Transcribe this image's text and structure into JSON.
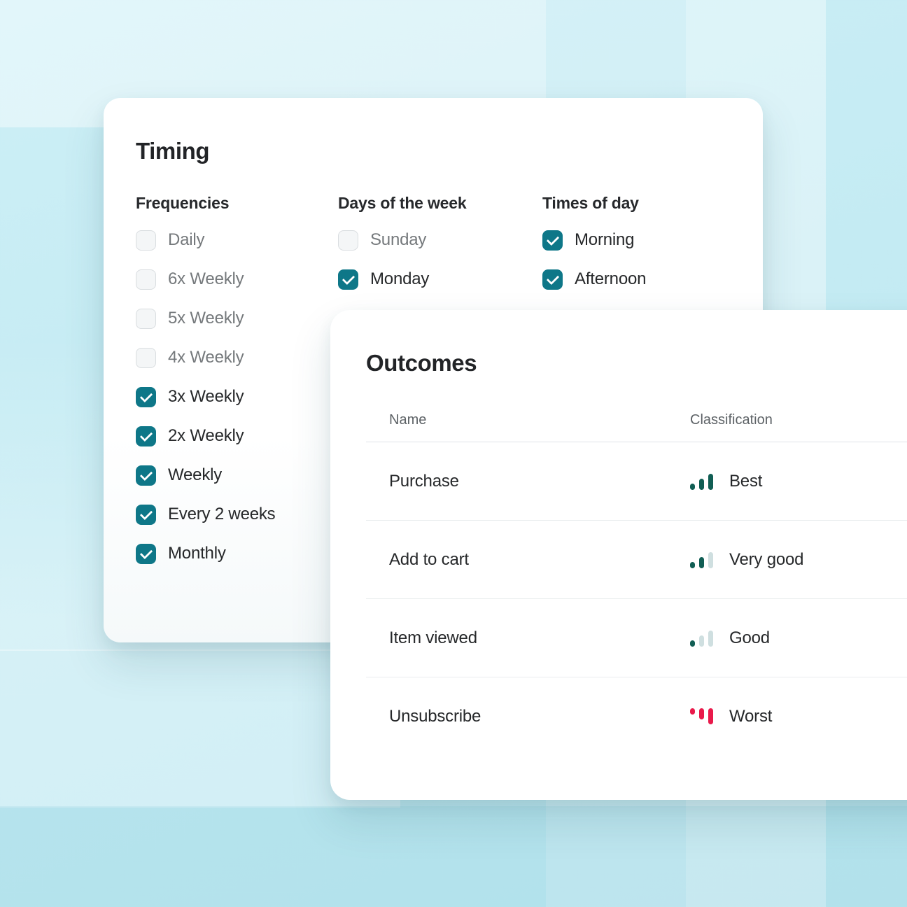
{
  "timing_card": {
    "title": "Timing",
    "groups": [
      {
        "heading": "Frequencies",
        "options": [
          {
            "label": "Daily",
            "checked": false
          },
          {
            "label": "6x Weekly",
            "checked": false
          },
          {
            "label": "5x Weekly",
            "checked": false
          },
          {
            "label": "4x Weekly",
            "checked": false
          },
          {
            "label": "3x Weekly",
            "checked": true
          },
          {
            "label": "2x Weekly",
            "checked": true
          },
          {
            "label": "Weekly",
            "checked": true
          },
          {
            "label": "Every 2 weeks",
            "checked": true
          },
          {
            "label": "Monthly",
            "checked": true
          }
        ]
      },
      {
        "heading": "Days of the week",
        "options": [
          {
            "label": "Sunday",
            "checked": false
          },
          {
            "label": "Monday",
            "checked": true
          }
        ]
      },
      {
        "heading": "Times of day",
        "options": [
          {
            "label": "Morning",
            "checked": true
          },
          {
            "label": "Afternoon",
            "checked": true
          }
        ]
      }
    ]
  },
  "outcomes_card": {
    "title": "Outcomes",
    "columns": [
      "Name",
      "Classification"
    ],
    "rows": [
      {
        "name": "Purchase",
        "classification": "Best",
        "icon": {
          "glyph": "signal-bars-icon",
          "direction": "up",
          "filled": 3
        }
      },
      {
        "name": "Add to cart",
        "classification": "Very good",
        "icon": {
          "glyph": "signal-bars-icon",
          "direction": "up",
          "filled": 2
        }
      },
      {
        "name": "Item viewed",
        "classification": "Good",
        "icon": {
          "glyph": "signal-bars-icon",
          "direction": "up",
          "filled": 1
        }
      },
      {
        "name": "Unsubscribe",
        "classification": "Worst",
        "icon": {
          "glyph": "signal-bars-down-icon",
          "direction": "down",
          "filled": 3
        }
      }
    ]
  },
  "colors": {
    "checkbox_checked_teal": "#0e7788",
    "bar_filled_green": "#115e54",
    "bar_filled_red": "#e91a4b",
    "bar_unfilled": "#cfdfe0"
  }
}
